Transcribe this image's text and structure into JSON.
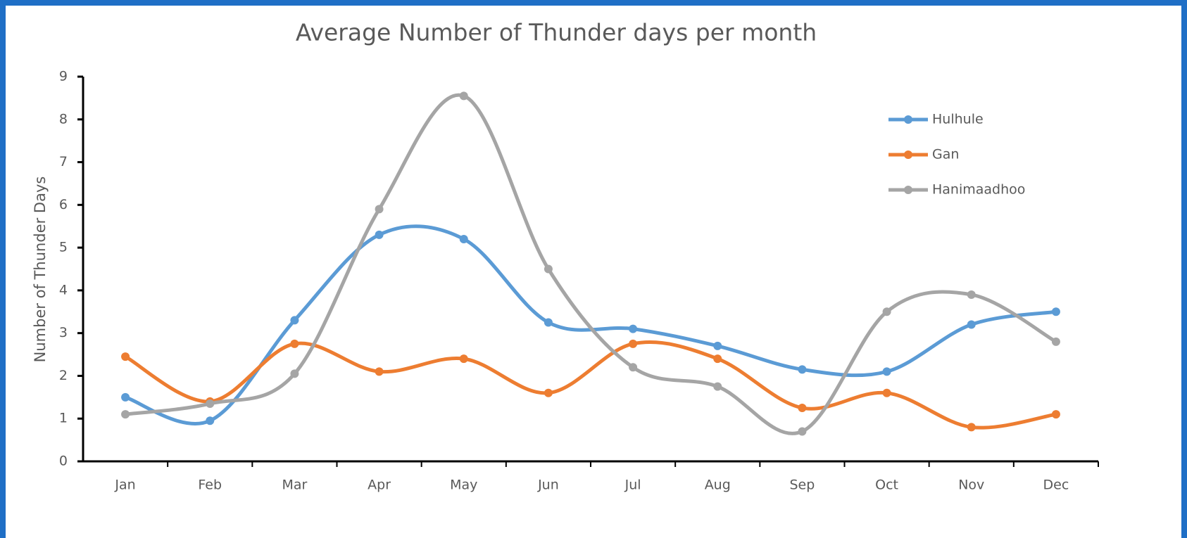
{
  "chart_data": {
    "type": "line",
    "title": "Average Number of Thunder days per month",
    "y_label": "Number of Thunder Days",
    "categories": [
      "Jan",
      "Feb",
      "Mar",
      "Apr",
      "May",
      "Jun",
      "Jul",
      "Aug",
      "Sep",
      "Oct",
      "Nov",
      "Dec"
    ],
    "series": [
      {
        "name": "Hulhule",
        "color": "#5b9bd5",
        "values": [
          1.5,
          0.95,
          3.3,
          5.3,
          5.2,
          3.25,
          3.1,
          2.7,
          2.15,
          2.1,
          3.2,
          3.5
        ]
      },
      {
        "name": "Gan",
        "color": "#ed7d31",
        "values": [
          2.45,
          1.4,
          2.75,
          2.1,
          2.4,
          1.6,
          2.75,
          2.4,
          1.25,
          1.6,
          0.8,
          1.1
        ]
      },
      {
        "name": "Hanimaadhoo",
        "color": "#a5a5a5",
        "values": [
          1.1,
          1.35,
          2.05,
          5.9,
          8.55,
          4.5,
          2.2,
          1.75,
          0.7,
          3.5,
          3.9,
          2.8
        ]
      }
    ],
    "ylim": [
      0,
      9
    ],
    "yticks": [
      0,
      1,
      2,
      3,
      4,
      5,
      6,
      7,
      8,
      9
    ],
    "smooth": true,
    "legend": "top-right"
  }
}
